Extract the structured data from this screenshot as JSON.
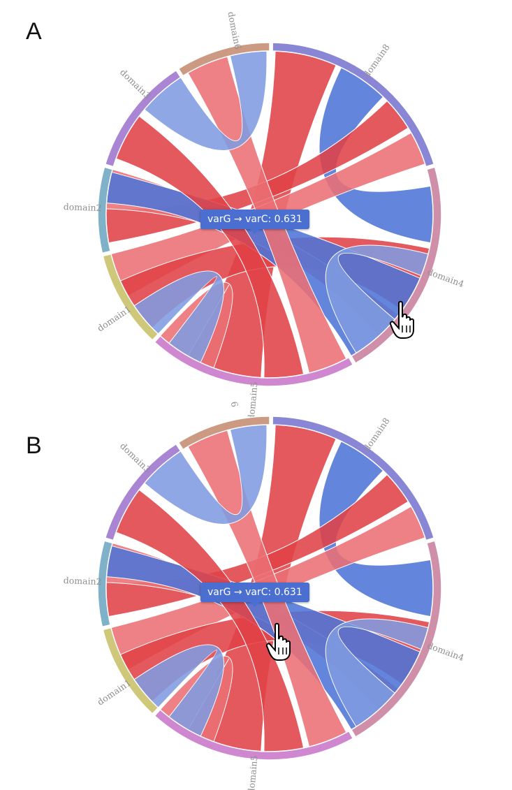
{
  "panels": [
    {
      "letter": "A",
      "tooltip": "varG → varC: 0.631",
      "domain_labels": [
        "domain1",
        "domain2",
        "domain3",
        "domain6",
        "domain8",
        "domain4",
        "domain5"
      ]
    },
    {
      "letter": "B",
      "tooltip": "varG → varC: 0.631",
      "domain_labels": [
        "domain1",
        "domain2",
        "domain3",
        "6",
        "domain8",
        "domain4",
        "domain5"
      ]
    }
  ],
  "colors": {
    "domain1": "#cfc87a",
    "domain2": "#7fb1c9",
    "domain3": "#a985d3",
    "domain6": "#cc9a82",
    "domain8": "#8a86d6",
    "domain4": "#cf8fa8",
    "domain5": "#cf88cf",
    "red": "#e04247",
    "blue": "#4d74d6",
    "light_red": "#ea6f74",
    "light_blue": "#7f9be0"
  },
  "icons": {
    "cursor": "hand-pointer-icon"
  }
}
